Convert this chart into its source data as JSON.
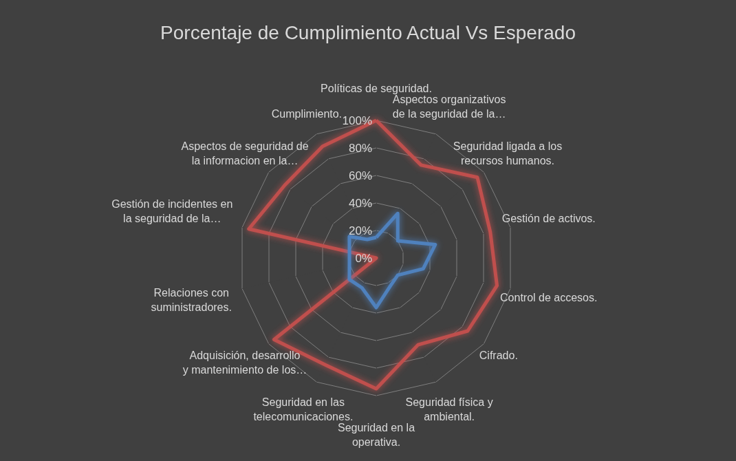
{
  "chart_data": {
    "type": "radar",
    "title": "Porcentaje de Cumplimiento Actual Vs Esperado",
    "categories": [
      "Políticas de seguridad.",
      "Aspectos organizativos de la seguridad de la…",
      "Seguridad ligada a los recursos humanos.",
      "Gestión de activos.",
      "Control de accesos.",
      "Cifrado.",
      "Seguridad física y ambiental.",
      "Seguridad en la operativa.",
      "Seguridad en las telecomunicaciones.",
      "Adquisición, desarrollo y mantenimiento de los…",
      "Relaciones con suministradores.",
      "Gestión de incidentes en la seguridad de la…",
      "Aspectos de seguridad de la informacion en la…",
      "Cumplimiento."
    ],
    "series": [
      {
        "color": "#c0504d",
        "values": [
          100,
          75,
          94,
          85,
          90,
          85,
          70,
          95,
          86,
          95,
          0,
          95,
          85,
          90
        ]
      },
      {
        "color": "#4f81bd",
        "values": [
          15,
          36,
          20,
          44,
          35,
          20,
          23,
          36,
          24,
          25,
          20,
          20,
          25,
          15
        ]
      }
    ],
    "ylim": [
      0,
      100
    ],
    "yticks": [
      {
        "value": 0,
        "label": "0%"
      },
      {
        "value": 20,
        "label": "20%"
      },
      {
        "value": 40,
        "label": "40%"
      },
      {
        "value": 60,
        "label": "60%"
      },
      {
        "value": 80,
        "label": "80%"
      },
      {
        "value": 100,
        "label": "100%"
      }
    ],
    "grid": true,
    "marker": "none",
    "line_style": "solid"
  }
}
